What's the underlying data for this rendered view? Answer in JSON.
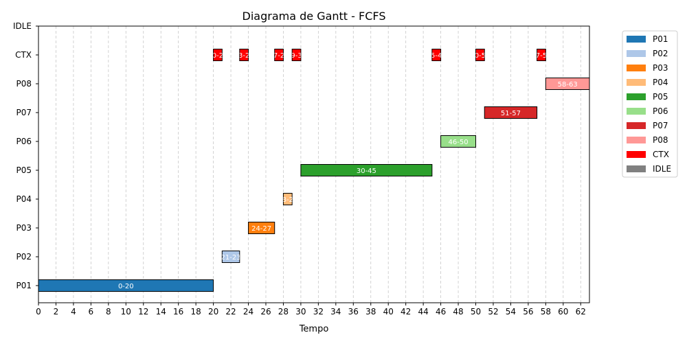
{
  "chart_data": {
    "type": "gantt",
    "title": "Diagrama de Gantt - FCFS",
    "xlabel": "Tempo",
    "ylabel": "",
    "xlim": [
      0,
      63
    ],
    "x_ticks": [
      0,
      2,
      4,
      6,
      8,
      10,
      12,
      14,
      16,
      18,
      20,
      22,
      24,
      26,
      28,
      30,
      32,
      34,
      36,
      38,
      40,
      42,
      44,
      46,
      48,
      50,
      52,
      54,
      56,
      58,
      60,
      62
    ],
    "rows": [
      "P01",
      "P02",
      "P03",
      "P04",
      "P05",
      "P06",
      "P07",
      "P08",
      "CTX",
      "IDLE"
    ],
    "grid_x": true,
    "legend_position": "outside-right",
    "legend": [
      {
        "name": "P01",
        "color": "#1f77b4"
      },
      {
        "name": "P02",
        "color": "#aec7e8"
      },
      {
        "name": "P03",
        "color": "#ff7f0e"
      },
      {
        "name": "P04",
        "color": "#ffbb78"
      },
      {
        "name": "P05",
        "color": "#2ca02c"
      },
      {
        "name": "P06",
        "color": "#98df8a"
      },
      {
        "name": "P07",
        "color": "#d62728"
      },
      {
        "name": "P08",
        "color": "#ff9896"
      },
      {
        "name": "CTX",
        "color": "#ff0000"
      },
      {
        "name": "IDLE",
        "color": "#808080"
      }
    ],
    "tasks": [
      {
        "row": "P01",
        "start": 0,
        "end": 20,
        "label": "0-20"
      },
      {
        "row": "CTX",
        "start": 20,
        "end": 21,
        "label": "20-21"
      },
      {
        "row": "P02",
        "start": 21,
        "end": 23,
        "label": "21-23"
      },
      {
        "row": "CTX",
        "start": 23,
        "end": 24,
        "label": "23-24"
      },
      {
        "row": "P03",
        "start": 24,
        "end": 27,
        "label": "24-27"
      },
      {
        "row": "CTX",
        "start": 27,
        "end": 28,
        "label": "27-28"
      },
      {
        "row": "P04",
        "start": 28,
        "end": 29,
        "label": "28-29"
      },
      {
        "row": "CTX",
        "start": 29,
        "end": 30,
        "label": "29-30"
      },
      {
        "row": "P05",
        "start": 30,
        "end": 45,
        "label": "30-45"
      },
      {
        "row": "CTX",
        "start": 45,
        "end": 46,
        "label": "45-46"
      },
      {
        "row": "P06",
        "start": 46,
        "end": 50,
        "label": "46-50"
      },
      {
        "row": "CTX",
        "start": 50,
        "end": 51,
        "label": "50-51"
      },
      {
        "row": "P07",
        "start": 51,
        "end": 57,
        "label": "51-57"
      },
      {
        "row": "CTX",
        "start": 57,
        "end": 58,
        "label": "57-58"
      },
      {
        "row": "P08",
        "start": 58,
        "end": 63,
        "label": "58-63"
      }
    ]
  }
}
